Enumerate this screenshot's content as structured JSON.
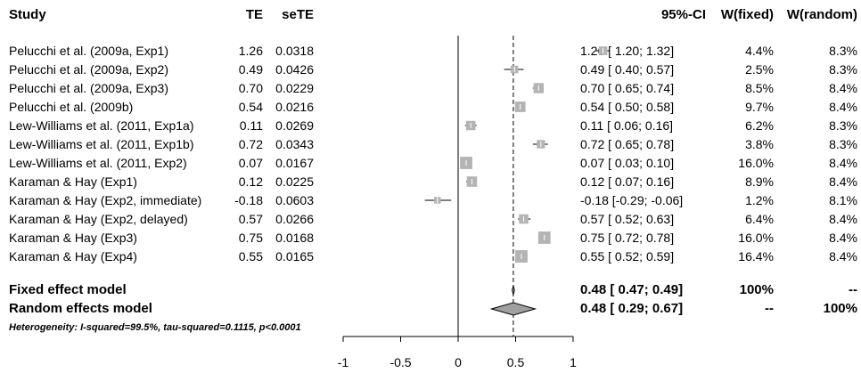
{
  "header": {
    "study": "Study",
    "te": "TE",
    "sete": "seTE",
    "ci": "95%-CI",
    "w_fixed": "W(fixed)",
    "w_random": "W(random)"
  },
  "chart_data": {
    "type": "forest",
    "xlim": [
      -1,
      1
    ],
    "x_ticks": [
      "-1",
      "-0.5",
      "0",
      "0.5",
      "1"
    ],
    "x_tick_values": [
      -1,
      -0.5,
      0,
      0.5,
      1
    ],
    "studies": [
      {
        "name": "Pelucchi et al. (2009a, Exp1)",
        "te": "1.26",
        "sete": "0.0318",
        "ci": "1.26  [ 1.20;  1.32]",
        "w_fixed": "4.4%",
        "w_random": "8.3%",
        "est": 1.26,
        "lo": 1.2,
        "hi": 1.32,
        "weight": 4.4
      },
      {
        "name": "Pelucchi et al. (2009a, Exp2)",
        "te": "0.49",
        "sete": "0.0426",
        "ci": "0.49  [ 0.40;  0.57]",
        "w_fixed": "2.5%",
        "w_random": "8.3%",
        "est": 0.49,
        "lo": 0.4,
        "hi": 0.57,
        "weight": 2.5
      },
      {
        "name": "Pelucchi et al. (2009a, Exp3)",
        "te": "0.70",
        "sete": "0.0229",
        "ci": "0.70  [ 0.65;  0.74]",
        "w_fixed": "8.5%",
        "w_random": "8.4%",
        "est": 0.7,
        "lo": 0.65,
        "hi": 0.74,
        "weight": 8.5
      },
      {
        "name": "Pelucchi et al. (2009b)",
        "te": "0.54",
        "sete": "0.0216",
        "ci": "0.54  [ 0.50;  0.58]",
        "w_fixed": "9.7%",
        "w_random": "8.4%",
        "est": 0.54,
        "lo": 0.5,
        "hi": 0.58,
        "weight": 9.7
      },
      {
        "name": "Lew-Williams et al. (2011, Exp1a)",
        "te": "0.11",
        "sete": "0.0269",
        "ci": "0.11  [ 0.06;  0.16]",
        "w_fixed": "6.2%",
        "w_random": "8.3%",
        "est": 0.11,
        "lo": 0.06,
        "hi": 0.16,
        "weight": 6.2
      },
      {
        "name": "Lew-Williams et al. (2011, Exp1b)",
        "te": "0.72",
        "sete": "0.0343",
        "ci": "0.72  [ 0.65;  0.78]",
        "w_fixed": "3.8%",
        "w_random": "8.3%",
        "est": 0.72,
        "lo": 0.65,
        "hi": 0.78,
        "weight": 3.8
      },
      {
        "name": "Lew-Williams et al. (2011, Exp2)",
        "te": "0.07",
        "sete": "0.0167",
        "ci": "0.07  [ 0.03;  0.10]",
        "w_fixed": "16.0%",
        "w_random": "8.4%",
        "est": 0.07,
        "lo": 0.03,
        "hi": 0.1,
        "weight": 16.0
      },
      {
        "name": "Karaman & Hay (Exp1)",
        "te": "0.12",
        "sete": "0.0225",
        "ci": "0.12  [ 0.07;  0.16]",
        "w_fixed": "8.9%",
        "w_random": "8.4%",
        "est": 0.12,
        "lo": 0.07,
        "hi": 0.16,
        "weight": 8.9
      },
      {
        "name": "Karaman & Hay (Exp2, immediate)",
        "te": "-0.18",
        "sete": "0.0603",
        "ci": "-0.18  [-0.29; -0.06]",
        "w_fixed": "1.2%",
        "w_random": "8.1%",
        "est": -0.18,
        "lo": -0.29,
        "hi": -0.06,
        "weight": 1.2
      },
      {
        "name": "Karaman & Hay (Exp2, delayed)",
        "te": "0.57",
        "sete": "0.0266",
        "ci": "0.57  [ 0.52;  0.63]",
        "w_fixed": "6.4%",
        "w_random": "8.4%",
        "est": 0.57,
        "lo": 0.52,
        "hi": 0.63,
        "weight": 6.4
      },
      {
        "name": "Karaman & Hay (Exp3)",
        "te": "0.75",
        "sete": "0.0168",
        "ci": "0.75  [ 0.72;  0.78]",
        "w_fixed": "16.0%",
        "w_random": "8.4%",
        "est": 0.75,
        "lo": 0.72,
        "hi": 0.78,
        "weight": 16.0
      },
      {
        "name": "Karaman & Hay (Exp4)",
        "te": "0.55",
        "sete": "0.0165",
        "ci": "0.55  [ 0.52;  0.59]",
        "w_fixed": "16.4%",
        "w_random": "8.4%",
        "est": 0.55,
        "lo": 0.52,
        "hi": 0.59,
        "weight": 16.4
      }
    ],
    "fixed": {
      "label": "Fixed effect model",
      "ci": "0.48  [ 0.47;  0.49]",
      "w_fixed": "100%",
      "w_random": "--",
      "est": 0.48,
      "lo": 0.47,
      "hi": 0.49
    },
    "random": {
      "label": "Random effects model",
      "ci": "0.48  [ 0.29;  0.67]",
      "w_fixed": "--",
      "w_random": "100%",
      "est": 0.48,
      "lo": 0.29,
      "hi": 0.67
    },
    "heterogeneity": "Heterogeneity: I-squared=99.5%, tau-squared=0.1115, p<0.0001",
    "colors": {
      "box": "#b4b4b4",
      "diamond": "#a0a0a0",
      "line": "#000000"
    }
  }
}
